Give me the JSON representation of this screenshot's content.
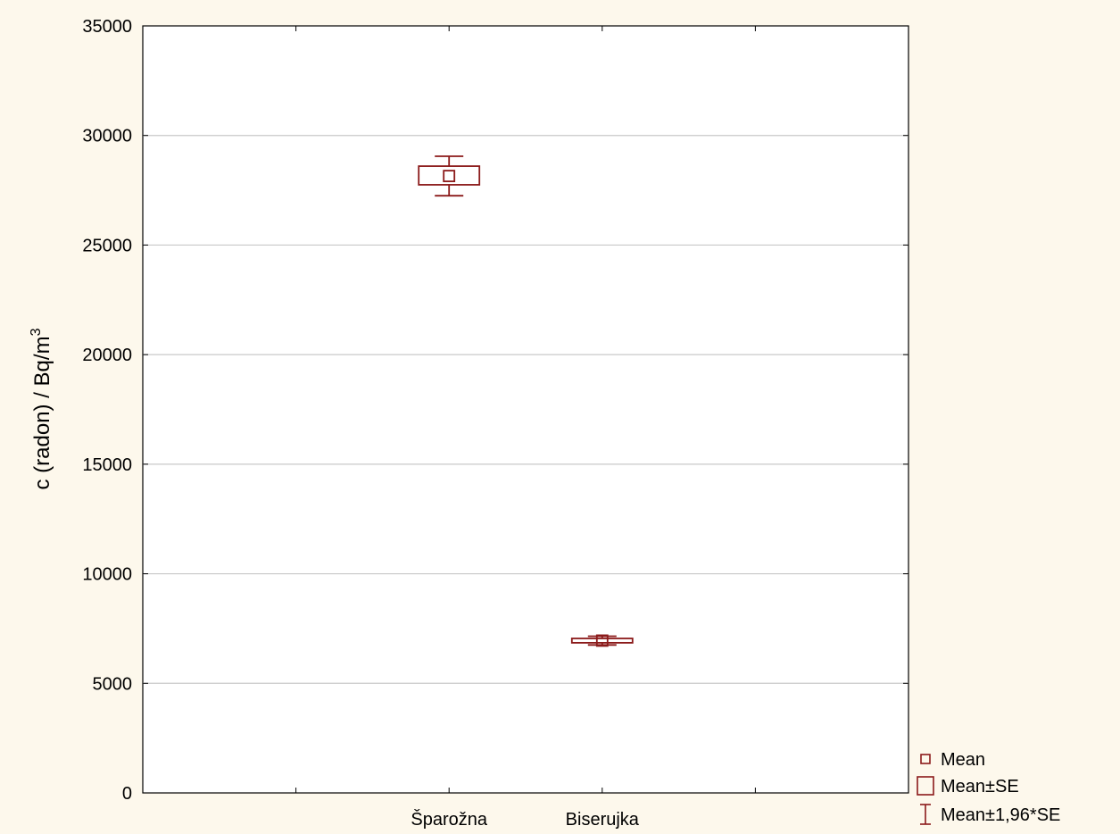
{
  "chart_data": {
    "type": "box",
    "title": "",
    "xlabel": "",
    "ylabel": "c (radon) / Bq/m",
    "ylabel_superscript": "3",
    "ylim": [
      0,
      35000
    ],
    "yticks": [
      0,
      5000,
      10000,
      15000,
      20000,
      25000,
      30000,
      35000
    ],
    "grid": true,
    "legend_position": "bottom-right, outside plot",
    "categories": [
      "Šparožna",
      "Biserujka"
    ],
    "boxes": [
      {
        "category": "Šparožna",
        "mean": 28150,
        "se_low": 27750,
        "se_high": 28600,
        "ci_low": 27250,
        "ci_high": 29050
      },
      {
        "category": "Biserujka",
        "mean": 6950,
        "se_low": 6850,
        "se_high": 7050,
        "ci_low": 6750,
        "ci_high": 7150
      }
    ],
    "legend": [
      {
        "symbol": "mean-marker-icon",
        "label": "Mean"
      },
      {
        "symbol": "box-icon",
        "label": "Mean±SE"
      },
      {
        "symbol": "whisker-icon",
        "label": "Mean±1,96*SE"
      }
    ],
    "colors": {
      "series": "#8b1a1a",
      "grid": "#c8c8c8",
      "background": "#fdf8ec",
      "plot_background": "#ffffff"
    }
  }
}
